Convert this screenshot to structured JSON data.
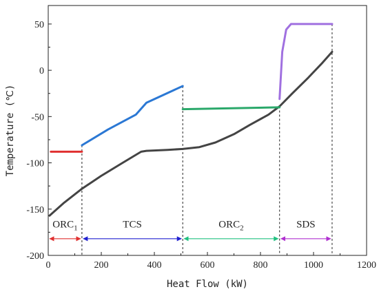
{
  "chart_data": {
    "type": "line",
    "xlabel": "Heat Flow (kW)",
    "ylabel": "Temperature (℃)",
    "xlim": [
      0,
      1200
    ],
    "ylim": [
      -200,
      70
    ],
    "xticks": [
      "0",
      "200",
      "400",
      "600",
      "800",
      "1000",
      "1200"
    ],
    "yticks": [
      "-200",
      "-150",
      "-100",
      "-50",
      "0",
      "50"
    ],
    "grid": false,
    "series": [
      {
        "color": "#444444",
        "points": [
          [
            5,
            -157
          ],
          [
            60,
            -143
          ],
          [
            127,
            -128
          ],
          [
            200,
            -114
          ],
          [
            280,
            -100
          ],
          [
            350,
            -88
          ],
          [
            370,
            -87
          ],
          [
            450,
            -86
          ],
          [
            507,
            -85
          ],
          [
            570,
            -83
          ],
          [
            630,
            -78
          ],
          [
            700,
            -69
          ],
          [
            760,
            -59
          ],
          [
            830,
            -48
          ],
          [
            872,
            -39
          ],
          [
            920,
            -25
          ],
          [
            980,
            -8
          ],
          [
            1030,
            7
          ],
          [
            1070,
            20
          ]
        ]
      },
      {
        "color": "#e03030",
        "points": [
          [
            10,
            -88
          ],
          [
            127,
            -88
          ]
        ]
      },
      {
        "color": "#2b78d4",
        "points": [
          [
            127,
            -81
          ],
          [
            225,
            -64
          ],
          [
            330,
            -48
          ],
          [
            370,
            -35
          ],
          [
            507,
            -17
          ]
        ]
      },
      {
        "color": "#2aa86a",
        "points": [
          [
            507,
            -42
          ],
          [
            872,
            -40
          ]
        ]
      },
      {
        "color": "#a070e0",
        "points": [
          [
            872,
            -31
          ],
          [
            882,
            20
          ],
          [
            897,
            44
          ],
          [
            915,
            50
          ],
          [
            1070,
            50
          ]
        ]
      }
    ],
    "separators": [
      127,
      507,
      872,
      1070
    ],
    "regions": [
      {
        "label": "ORC",
        "sub": "1",
        "x0": 0,
        "x1": 127,
        "label_y": -170,
        "color": "#e03030"
      },
      {
        "label": "TCS",
        "sub": "",
        "x0": 127,
        "x1": 507,
        "label_y": -170,
        "color": "#2020d0"
      },
      {
        "label": "ORC",
        "sub": "2",
        "x0": 507,
        "x1": 872,
        "label_y": -170,
        "color": "#20c080"
      },
      {
        "label": "SDS",
        "sub": "",
        "x0": 872,
        "x1": 1070,
        "label_y": -170,
        "color": "#b030d0"
      }
    ],
    "arrow_y": -182
  }
}
